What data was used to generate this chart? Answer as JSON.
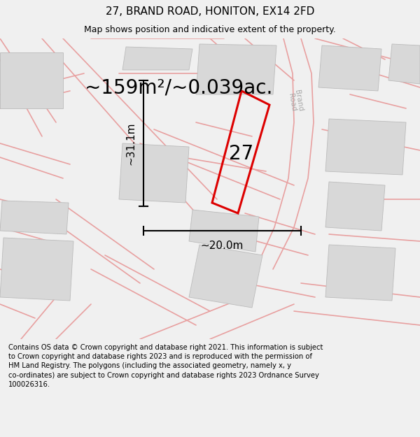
{
  "title": "27, BRAND ROAD, HONITON, EX14 2FD",
  "subtitle": "Map shows position and indicative extent of the property.",
  "area_text": "~159m²/~0.039ac.",
  "width_label": "~20.0m",
  "height_label": "~31.1m",
  "plot_number": "27",
  "road_label": "Brand Road",
  "footer_text": "Contains OS data © Crown copyright and database right 2021. This information is subject to Crown copyright and database rights 2023 and is reproduced with the permission of HM Land Registry. The polygons (including the associated geometry, namely x, y co-ordinates) are subject to Crown copyright and database rights 2023 Ordnance Survey 100026316.",
  "bg_color": "#f0f0f0",
  "map_bg": "#ffffff",
  "plot_color": "#dd0000",
  "road_line_color": "#e8a0a0",
  "building_fill": "#d8d8d8",
  "building_edge": "#bbbbbb",
  "title_fontsize": 11,
  "subtitle_fontsize": 9,
  "area_fontsize": 20,
  "label_fontsize": 11,
  "plot_label_fontsize": 20,
  "fig_width": 6.0,
  "fig_height": 6.25,
  "dpi": 100
}
